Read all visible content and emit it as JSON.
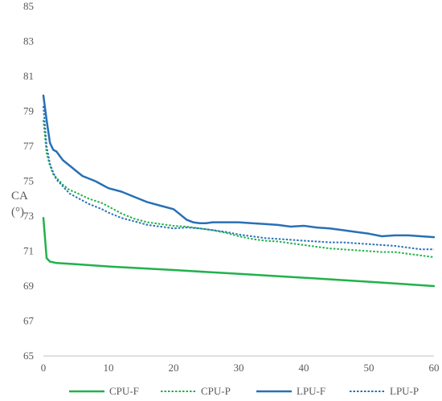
{
  "chart_data": {
    "type": "line",
    "title": "",
    "xlabel": "",
    "ylabel": "CA (°)",
    "ylabel_lines": [
      "CA",
      "(°)"
    ],
    "xlim": [
      0,
      60
    ],
    "ylim": [
      65,
      85
    ],
    "xticks": [
      0,
      10,
      20,
      30,
      40,
      50,
      60
    ],
    "yticks": [
      65,
      67,
      69,
      71,
      73,
      75,
      77,
      79,
      81,
      83,
      85
    ],
    "grid": false,
    "legend_position": "bottom",
    "series": [
      {
        "name": "CPU-F",
        "color": "#21b14b",
        "style": "solid",
        "x": [
          0,
          0.5,
          1,
          2,
          5,
          10,
          20,
          30,
          40,
          50,
          60
        ],
        "y": [
          72.9,
          70.6,
          70.4,
          70.32,
          70.25,
          70.12,
          69.92,
          69.7,
          69.48,
          69.25,
          69.0
        ]
      },
      {
        "name": "CPU-P",
        "color": "#21b14b",
        "style": "dotted",
        "x": [
          0,
          0.5,
          1,
          1.5,
          2,
          3,
          4,
          5,
          7,
          9,
          10,
          12,
          14,
          16,
          18,
          20,
          22,
          24,
          26,
          28,
          30,
          32,
          34,
          36,
          38,
          40,
          42,
          44,
          46,
          48,
          50,
          52,
          54,
          56,
          58,
          60
        ],
        "y": [
          78.5,
          76.6,
          75.9,
          75.4,
          75.2,
          74.8,
          74.5,
          74.35,
          74.0,
          73.75,
          73.55,
          73.15,
          72.85,
          72.65,
          72.55,
          72.45,
          72.4,
          72.3,
          72.2,
          72.05,
          71.85,
          71.7,
          71.6,
          71.55,
          71.45,
          71.35,
          71.25,
          71.15,
          71.1,
          71.05,
          71.0,
          70.95,
          70.95,
          70.85,
          70.75,
          70.65
        ]
      },
      {
        "name": "LPU-F",
        "color": "#2770b6",
        "style": "solid",
        "x": [
          0,
          0.5,
          1,
          1.5,
          2,
          3,
          4,
          5,
          6,
          8,
          10,
          12,
          14,
          16,
          18,
          20,
          21,
          22,
          23,
          24,
          25,
          26,
          30,
          32,
          34,
          36,
          38,
          40,
          42,
          44,
          46,
          48,
          50,
          52,
          54,
          56,
          58,
          60
        ],
        "y": [
          79.9,
          78.5,
          77.2,
          76.8,
          76.7,
          76.2,
          75.9,
          75.6,
          75.3,
          75.0,
          74.6,
          74.4,
          74.1,
          73.8,
          73.6,
          73.4,
          73.1,
          72.8,
          72.65,
          72.6,
          72.6,
          72.65,
          72.65,
          72.6,
          72.55,
          72.5,
          72.4,
          72.45,
          72.35,
          72.3,
          72.2,
          72.1,
          72.0,
          71.85,
          71.9,
          71.9,
          71.85,
          71.8
        ]
      },
      {
        "name": "LPU-P",
        "color": "#2770b6",
        "style": "dotted",
        "x": [
          0,
          0.5,
          1,
          1.5,
          2,
          3,
          4,
          5,
          7,
          9,
          10,
          12,
          14,
          16,
          18,
          20,
          22,
          24,
          26,
          28,
          30,
          32,
          34,
          36,
          38,
          40,
          42,
          44,
          46,
          48,
          50,
          52,
          54,
          56,
          58,
          60
        ],
        "y": [
          79.3,
          77.0,
          76.0,
          75.5,
          75.1,
          74.7,
          74.3,
          74.1,
          73.7,
          73.4,
          73.2,
          72.9,
          72.7,
          72.5,
          72.4,
          72.3,
          72.35,
          72.3,
          72.2,
          72.1,
          71.95,
          71.85,
          71.75,
          71.7,
          71.65,
          71.6,
          71.55,
          71.5,
          71.5,
          71.45,
          71.4,
          71.35,
          71.3,
          71.2,
          71.1,
          71.1
        ]
      }
    ]
  }
}
